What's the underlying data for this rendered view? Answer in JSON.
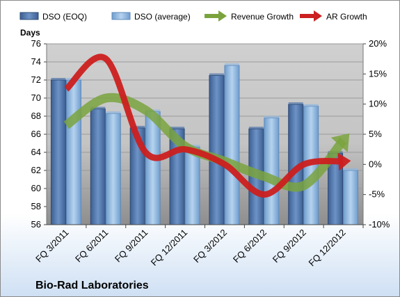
{
  "chart_data": {
    "type": "bar",
    "title": "Bio-Rad Laboratories",
    "ylabel": "Days",
    "categories": [
      "FQ 3/2011",
      "FQ 6/2011",
      "FQ 9/2011",
      "FQ 12/2011",
      "FQ 3/2012",
      "FQ 6/2012",
      "FQ 9/2012",
      "FQ 12/2012"
    ],
    "ylim": [
      56,
      76
    ],
    "y_ticks": [
      "56",
      "58",
      "60",
      "62",
      "64",
      "66",
      "68",
      "70",
      "72",
      "74",
      "76"
    ],
    "y2lim": [
      -10,
      20
    ],
    "y2_ticks": [
      "-10%",
      "-5%",
      "0%",
      "5%",
      "10%",
      "15%",
      "20%"
    ],
    "series": [
      {
        "name": "DSO (EOQ)",
        "type": "bar",
        "axis": "left",
        "color": "#4f74a8",
        "values": [
          72.0,
          68.8,
          66.7,
          66.6,
          72.5,
          66.6,
          69.3,
          63.9
        ]
      },
      {
        "name": "DSO (average)",
        "type": "bar",
        "axis": "left",
        "color": "#8fb6de",
        "values": [
          72.0,
          68.3,
          68.5,
          64.6,
          73.6,
          67.8,
          69.1,
          62.0
        ]
      },
      {
        "name": "Revenue Growth",
        "type": "line",
        "axis": "right",
        "color": "#7aa33e",
        "values": [
          6.5,
          11.0,
          9.0,
          3.0,
          0.5,
          -2.0,
          -3.5,
          4.0
        ]
      },
      {
        "name": "AR Growth",
        "type": "line",
        "axis": "right",
        "color": "#cc1f1f",
        "values": [
          12.5,
          17.5,
          2.0,
          2.5,
          0.0,
          -5.0,
          0.0,
          0.5
        ]
      }
    ],
    "legend_position": "top",
    "grid": true
  }
}
